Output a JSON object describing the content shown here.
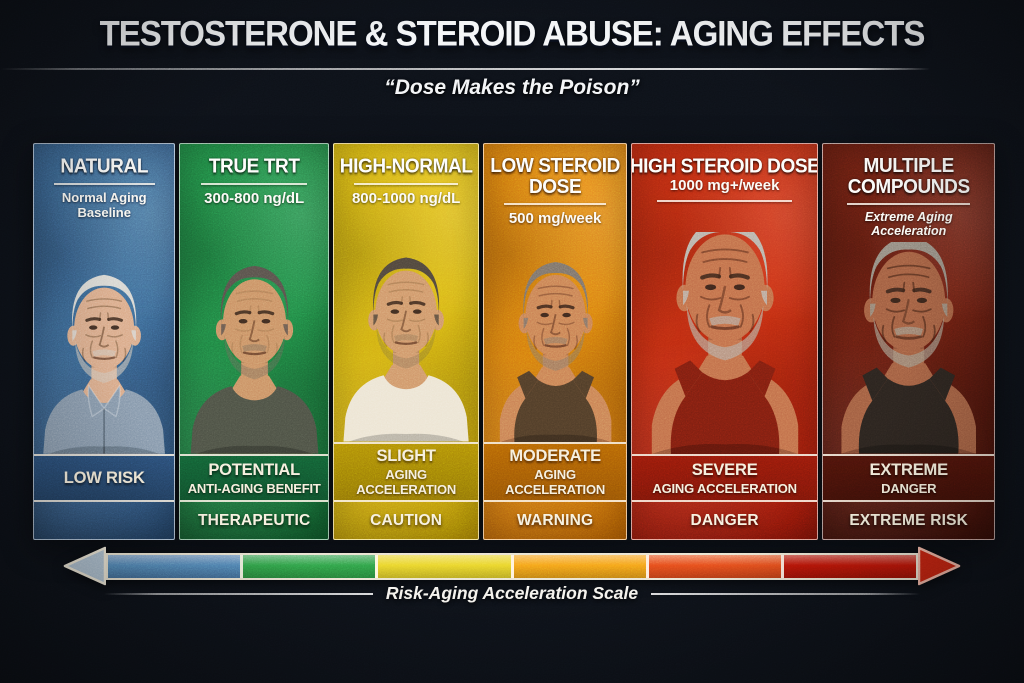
{
  "header": {
    "title": "TESTOSTERONE & STEROID ABUSE: AGING EFFECTS",
    "subtitle": "“Dose Makes the Poison”"
  },
  "columns": [
    {
      "title": "NATURAL",
      "title2": "",
      "sub": "Normal Aging Baseline",
      "band1": "LOW RISK",
      "band2": "",
      "status": "",
      "rule_after_sub": false,
      "portrait": {
        "style": "shirt",
        "wrinkles": 0.55,
        "desc": "elderly man, grey hair, blue collared shirt"
      },
      "colors": {
        "panel": "#41709f",
        "panel_dark": "#27496f",
        "band": "#2e5480",
        "skin": "#d9a886",
        "hair": "#d6d5d0",
        "beard": "#cfc8bd",
        "beard_opacity": 0.55,
        "shirt": "#8396aa"
      }
    },
    {
      "title": "TRUE TRT",
      "title2": "",
      "sub": "300-800 ng/dL",
      "band1": "POTENTIAL",
      "band2": "ANTI-AGING BENEFIT",
      "status": "THERAPEUTIC",
      "rule_after_sub": false,
      "portrait": {
        "style": "tee",
        "wrinkles": 0.22,
        "desc": "middle-aged man, dark hair, dark tee, smiling"
      },
      "colors": {
        "panel": "#24914a",
        "panel_dark": "#115c2d",
        "band": "#15693a",
        "skin": "#c98f63",
        "hair": "#57504a",
        "beard": "#6f6358",
        "beard_opacity": 0.4,
        "shirt": "#4c5044"
      }
    },
    {
      "title": "HIGH-NORMAL",
      "title2": "",
      "sub": "800-1000 ng/dL",
      "band1": "SLIGHT",
      "band2": "AGING ACCELERATION",
      "status": "CAUTION",
      "rule_after_sub": false,
      "portrait": {
        "style": "tee",
        "wrinkles": 0.32,
        "desc": "middle-aged man, dark hair, cream tee"
      },
      "colors": {
        "panel": "#e6c017",
        "panel_dark": "#ba9306",
        "band": "#c49d09",
        "skin": "#cf9568",
        "hair": "#4e453b",
        "beard": "#5d5348",
        "beard_opacity": 0.25,
        "shirt": "#ece4d2"
      }
    },
    {
      "title": "LOW STEROID",
      "title2": "DOSE",
      "sub": "500 mg/week",
      "band1": "MODERATE",
      "band2": "AGING ACCELERATION",
      "status": "WARNING",
      "rule_after_sub": false,
      "portrait": {
        "style": "tank",
        "wrinkles": 0.55,
        "desc": "older greying man, dark tank top"
      },
      "colors": {
        "panel": "#ea8812",
        "panel_dark": "#bd6505",
        "band": "#c96f07",
        "skin": "#c97f53",
        "hair": "#7a7168",
        "beard": "#837767",
        "beard_opacity": 0.5,
        "shirt": "#4f3c28"
      }
    },
    {
      "title": "HIGH STEROID DOSE",
      "title2": "",
      "sub": "1000 mg+/week",
      "band1": "SEVERE",
      "band2": "AGING ACCELERATION",
      "status": "DANGER",
      "rule_after_sub": true,
      "portrait": {
        "style": "tank",
        "wrinkles": 0.75,
        "desc": "old muscular man, grey hair, red tank top"
      },
      "colors": {
        "panel": "#cb2f13",
        "panel_dark": "#93170a",
        "band": "#a41d0c",
        "skin": "#c06d49",
        "hair": "#b7b1a8",
        "beard": "#b2a89c",
        "beard_opacity": 0.65,
        "shirt": "#7c1e10"
      }
    },
    {
      "title": "MULTIPLE",
      "title2": "COMPOUNDS",
      "sub": "Extreme Aging Acceleration",
      "band1": "EXTREME",
      "band2": "DANGER",
      "status": "EXTREME RISK",
      "rule_after_sub": false,
      "portrait": {
        "style": "tank",
        "wrinkles": 0.9,
        "desc": "gaunt old man, grey beard, black tank top"
      },
      "colors": {
        "panel": "#6f2113",
        "panel_dark": "#40110a",
        "band": "#53150b",
        "skin": "#9e5c40",
        "hair": "#8f877c",
        "beard": "#998f82",
        "beard_opacity": 0.7,
        "shirt": "#2a231e"
      }
    }
  ],
  "scale": {
    "label": "Risk-Aging Acceleration Scale",
    "segments": [
      "#5083b7",
      "#2f9e46",
      "#e9d32b",
      "#f59f19",
      "#e54a1b",
      "#bb1508"
    ],
    "arrow_left_color": "#aabecf",
    "arrow_right_color": "#c22210"
  }
}
